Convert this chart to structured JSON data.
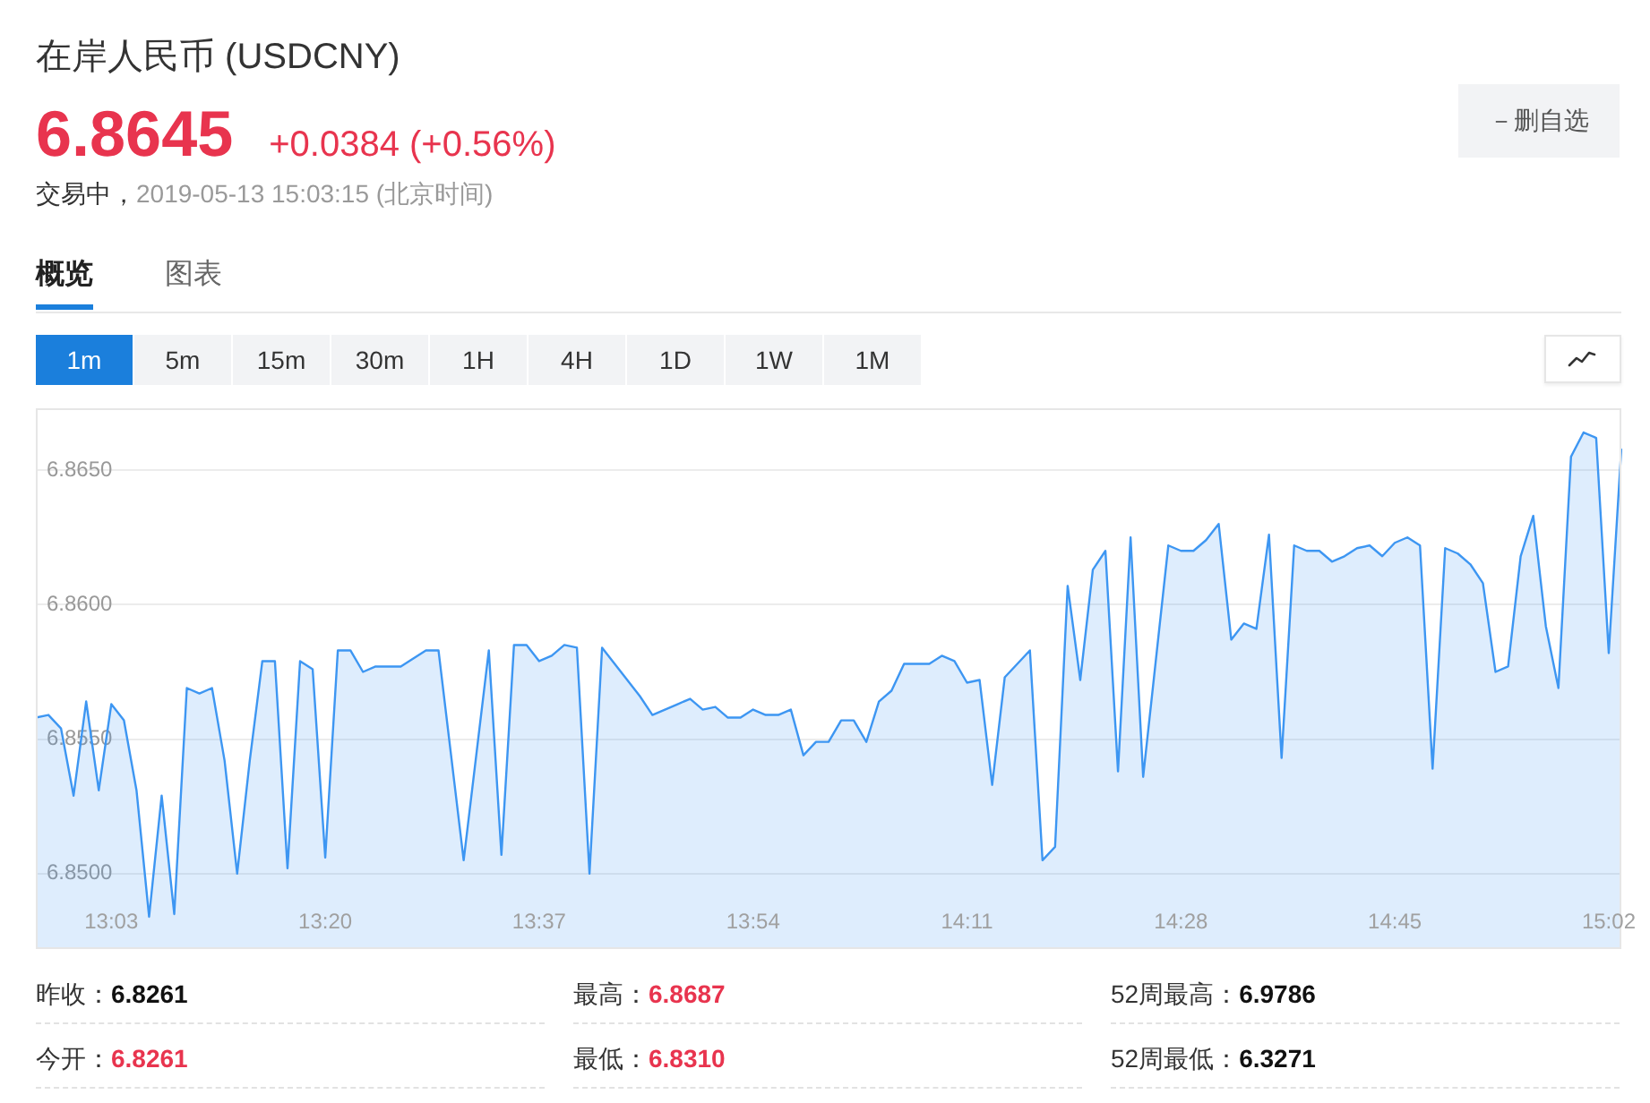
{
  "chart_data": {
    "type": "area",
    "title": "在岸人民币 (USDCNY)",
    "annotations": [
      "6.8645",
      "+0.0384 (+0.56%)",
      "交易中，",
      "2019-05-13 15:03:15 (北京时间)",
      "－删自选",
      "概览",
      "图表",
      "1m",
      "5m",
      "15m",
      "30m",
      "1H",
      "4H",
      "1D",
      "1W",
      "1M",
      "昨收：",
      "6.8261",
      "最高：",
      "6.8687",
      "52周最高：",
      "6.9786",
      "今开：",
      "6.8261",
      "最低：",
      "6.8310",
      "52周最低：",
      "6.3271"
    ],
    "categories": [
      null,
      null,
      null,
      null,
      null,
      null,
      "13:03",
      null,
      null,
      null,
      null,
      null,
      null,
      null,
      null,
      null,
      null,
      null,
      null,
      null,
      null,
      null,
      null,
      "13:20",
      null,
      null,
      null,
      null,
      null,
      null,
      null,
      null,
      null,
      null,
      null,
      null,
      null,
      null,
      null,
      null,
      "13:37",
      null,
      null,
      null,
      null,
      null,
      null,
      null,
      null,
      null,
      null,
      null,
      null,
      null,
      null,
      null,
      null,
      "13:54",
      null,
      null,
      null,
      null,
      null,
      null,
      null,
      null,
      null,
      null,
      null,
      null,
      null,
      null,
      null,
      null,
      "14:11",
      null,
      null,
      null,
      null,
      null,
      null,
      null,
      null,
      null,
      null,
      null,
      null,
      null,
      null,
      null,
      null,
      "14:28",
      null,
      null,
      null,
      null,
      null,
      null,
      null,
      null,
      null,
      null,
      null,
      null,
      null,
      null,
      null,
      null,
      "14:45",
      null,
      null,
      null,
      null,
      null,
      null,
      null,
      null,
      null,
      null,
      null,
      null,
      null,
      null,
      null,
      null,
      "15:02",
      null
    ],
    "values": [
      6.8558,
      6.8559,
      6.8554,
      6.8529,
      6.8564,
      6.8531,
      6.8563,
      6.8557,
      6.8531,
      6.8484,
      6.8529,
      6.8485,
      6.8569,
      6.8567,
      6.8569,
      6.8542,
      6.85,
      6.8542,
      6.8579,
      6.8579,
      6.8502,
      6.8579,
      6.8576,
      6.8506,
      6.8583,
      6.8583,
      6.8575,
      6.8577,
      6.8577,
      6.8577,
      6.858,
      6.8583,
      6.8583,
      6.8544,
      6.8505,
      6.8544,
      6.8583,
      6.8507,
      6.8585,
      6.8585,
      6.8579,
      6.8581,
      6.8585,
      6.8584,
      6.85,
      6.8584,
      6.8578,
      6.8572,
      6.8566,
      6.8559,
      6.8561,
      6.8563,
      6.8565,
      6.8561,
      6.8562,
      6.8558,
      6.8558,
      6.8561,
      6.8559,
      6.8559,
      6.8561,
      6.8544,
      6.8549,
      6.8549,
      6.8557,
      6.8557,
      6.8549,
      6.8564,
      6.8568,
      6.8578,
      6.8578,
      6.8578,
      6.8581,
      6.8579,
      6.8571,
      6.8572,
      6.8533,
      6.8573,
      6.8578,
      6.8583,
      6.8505,
      6.851,
      6.8607,
      6.8572,
      6.8613,
      6.862,
      6.8538,
      6.8625,
      6.8536,
      6.8579,
      6.8622,
      6.862,
      6.862,
      6.8624,
      6.863,
      6.8587,
      6.8593,
      6.8591,
      6.8626,
      6.8543,
      6.8622,
      6.862,
      6.862,
      6.8616,
      6.8618,
      6.8621,
      6.8622,
      6.8618,
      6.8623,
      6.8625,
      6.8622,
      6.8539,
      6.8621,
      6.8619,
      6.8615,
      6.8608,
      6.8575,
      6.8577,
      6.8618,
      6.8633,
      6.8592,
      6.8569,
      6.8655,
      6.8664,
      6.8662,
      6.8582,
      6.8658
    ],
    "color": "#3d96f2",
    "ylim": [
      6.8472,
      6.8673
    ],
    "yticks": [
      {
        "value": 6.85,
        "label": "6.8500"
      },
      {
        "value": 6.855,
        "label": "6.8550"
      },
      {
        "value": 6.86,
        "label": "6.8600"
      },
      {
        "value": 6.865,
        "label": "6.8650"
      }
    ],
    "grid": "y",
    "marker": "none"
  }
}
